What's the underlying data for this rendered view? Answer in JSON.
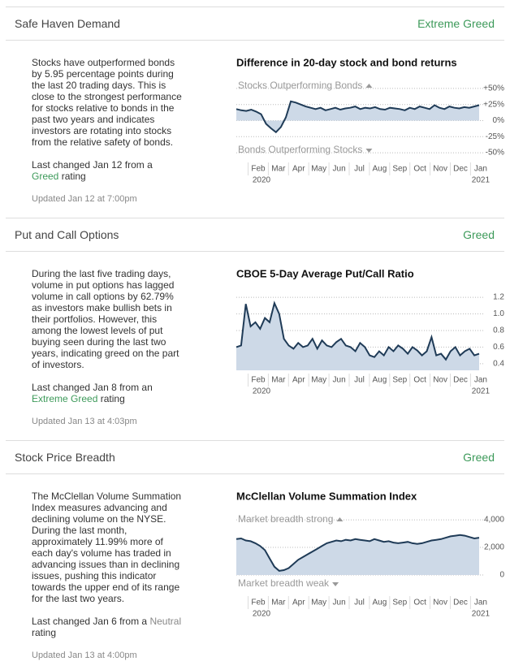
{
  "sections": [
    {
      "title": "Safe Haven Demand",
      "rating": "Extreme Greed",
      "description": "Stocks have outperformed bonds by 5.95 percentage points during the last 20 trading days. This is close to the strongest performance for stocks relative to bonds in the past two years and indicates investors are rotating into stocks from the relative safety of bonds.",
      "last_changed": "Last changed Jan 12 from a",
      "previous_rating": "Greed",
      "rating_word": "rating",
      "updated": "Updated Jan 12 at 7:00pm",
      "chart_data": {
        "type": "area",
        "title": "Difference in 20-day stock and bond returns",
        "upper_label": "Stocks Outperforming Bonds",
        "lower_label": "Bonds Outperforming Stocks",
        "months": [
          "Feb",
          "Mar",
          "Apr",
          "May",
          "Jun",
          "Jul",
          "Aug",
          "Sep",
          "Oct",
          "Nov",
          "Dec",
          "Jan"
        ],
        "years": [
          "2020",
          "2021"
        ],
        "values": [
          18,
          16,
          15,
          17,
          14,
          10,
          -5,
          -12,
          -18,
          -10,
          5,
          30,
          28,
          25,
          22,
          20,
          18,
          20,
          16,
          18,
          20,
          17,
          19,
          20,
          22,
          18,
          20,
          19,
          21,
          18,
          17,
          20,
          19,
          18,
          16,
          20,
          18,
          22,
          20,
          18,
          24,
          20,
          18,
          22,
          20,
          19,
          21,
          20,
          22,
          24
        ],
        "ylim": [
          -60,
          60
        ],
        "yticks": [
          {
            "value": 50,
            "label": "+50%"
          },
          {
            "value": 25,
            "label": "+25%"
          },
          {
            "value": 0,
            "label": "0%"
          },
          {
            "value": -25,
            "label": "-25%"
          },
          {
            "value": -50,
            "label": "-50%"
          }
        ],
        "line_color": "#1f3b57",
        "fill_color": "#cdd9e7",
        "grid": true
      }
    },
    {
      "title": "Put and Call Options",
      "rating": "Greed",
      "description": "During the last five trading days, volume in put options has lagged volume in call options by 62.79% as investors make bullish bets in their portfolios. However, this among the lowest levels of put buying seen during the last two years, indicating greed on the part of investors.",
      "last_changed": "Last changed Jan 8 from an",
      "previous_rating": "Extreme Greed",
      "rating_word": "rating",
      "updated": "Updated Jan 13 at 4:03pm",
      "chart_data": {
        "type": "area",
        "title": "CBOE 5-Day Average Put/Call Ratio",
        "months": [
          "Feb",
          "Mar",
          "Apr",
          "May",
          "Jun",
          "Jul",
          "Aug",
          "Sep",
          "Oct",
          "Nov",
          "Dec",
          "Jan"
        ],
        "years": [
          "2020",
          "2021"
        ],
        "values": [
          0.6,
          0.62,
          1.12,
          0.85,
          0.9,
          0.82,
          0.95,
          0.9,
          1.13,
          1.0,
          0.7,
          0.62,
          0.58,
          0.65,
          0.6,
          0.62,
          0.7,
          0.58,
          0.68,
          0.62,
          0.6,
          0.66,
          0.7,
          0.62,
          0.6,
          0.55,
          0.65,
          0.6,
          0.5,
          0.48,
          0.55,
          0.5,
          0.6,
          0.55,
          0.62,
          0.58,
          0.52,
          0.6,
          0.56,
          0.5,
          0.55,
          0.72,
          0.5,
          0.52,
          0.45,
          0.55,
          0.6,
          0.5,
          0.55,
          0.58,
          0.5,
          0.52
        ],
        "ylim": [
          0.32,
          1.25
        ],
        "yticks": [
          1.2,
          {
            "value": 1,
            "label": "1.0"
          },
          0.8,
          0.6,
          0.4
        ],
        "line_color": "#1f3b57",
        "fill_color": "#cdd9e7",
        "grid": true
      }
    },
    {
      "title": "Stock Price Breadth",
      "rating": "Greed",
      "description": "The McClellan Volume Summation Index measures advancing and declining volume on the NYSE. During the last month, approximately 11.99% more of each day's volume has traded in advancing issues than in declining issues, pushing this indicator towards the upper end of its range for the last two years.",
      "last_changed": "Last changed Jan 6 from a",
      "previous_rating": "Neutral",
      "rating_word": "rating",
      "updated": "Updated Jan 13 at 4:00pm",
      "chart_data": {
        "type": "area",
        "title": "McClellan Volume Summation Index",
        "upper_label": "Market breadth strong",
        "lower_label": "Market breadth weak",
        "months": [
          "Feb",
          "Mar",
          "Apr",
          "May",
          "Jun",
          "Jul",
          "Aug",
          "Sep",
          "Oct",
          "Nov",
          "Dec",
          "Jan"
        ],
        "years": [
          "2020",
          "2021"
        ],
        "values": [
          2600,
          2650,
          2500,
          2450,
          2300,
          2100,
          1800,
          1200,
          600,
          300,
          350,
          500,
          800,
          1100,
          1300,
          1500,
          1700,
          1900,
          2100,
          2300,
          2400,
          2500,
          2450,
          2550,
          2500,
          2600,
          2550,
          2500,
          2450,
          2600,
          2500,
          2400,
          2450,
          2350,
          2300,
          2350,
          2400,
          2300,
          2250,
          2300,
          2400,
          2500,
          2550,
          2600,
          2700,
          2800,
          2850,
          2900,
          2850,
          2750,
          2650,
          2700
        ],
        "ylim": [
          -1300,
          4300
        ],
        "yticks": [
          {
            "value": 4000,
            "label": "4,000"
          },
          {
            "value": 2000,
            "label": "2,000"
          },
          0
        ],
        "line_color": "#1f3b57",
        "fill_color": "#cdd9e7",
        "grid": true
      }
    }
  ]
}
